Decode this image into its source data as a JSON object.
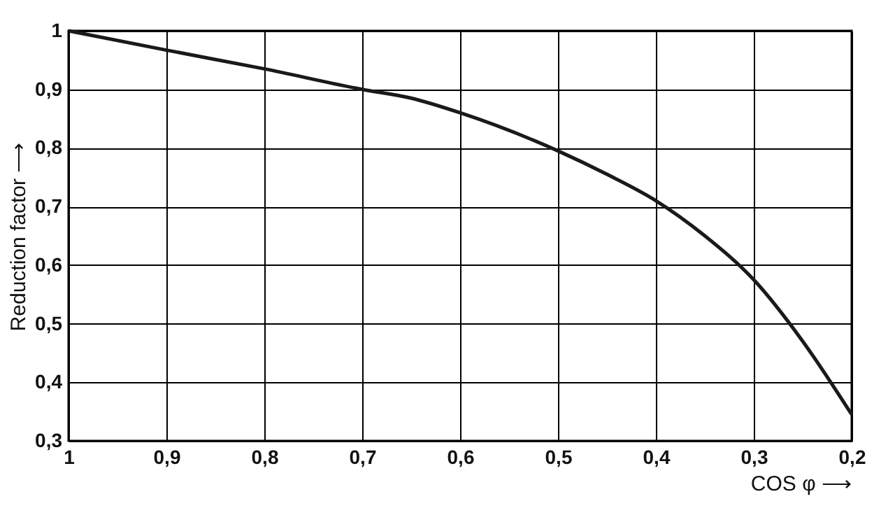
{
  "chart_data": {
    "type": "line",
    "xlabel": "COS φ ⟶",
    "ylabel": "Reduction factor ⟶",
    "x": [
      1,
      0.9,
      0.8,
      0.7,
      0.65,
      0.6,
      0.5,
      0.45,
      0.4,
      0.35,
      0.3,
      0.25,
      0.2
    ],
    "series": [
      {
        "color": "#1a1a1a",
        "values": [
          1,
          0.967,
          0.935,
          0.9,
          0.885,
          0.86,
          0.795,
          0.755,
          0.71,
          0.65,
          0.575,
          0.47,
          0.345
        ]
      }
    ],
    "xlim": [
      1,
      0.2
    ],
    "ylim": [
      0.3,
      1
    ],
    "xticks": [
      1,
      {
        "value": 0.9,
        "label": "0,9"
      },
      {
        "value": 0.8,
        "label": "0,8"
      },
      {
        "value": 0.7,
        "label": "0,7"
      },
      {
        "value": 0.6,
        "label": "0,6"
      },
      {
        "value": 0.5,
        "label": "0,5"
      },
      {
        "value": 0.4,
        "label": "0,4"
      },
      {
        "value": 0.3,
        "label": "0,3"
      },
      {
        "value": 0.2,
        "label": "0,2"
      }
    ],
    "yticks": [
      {
        "value": 0.3,
        "label": "0,3"
      },
      {
        "value": 0.4,
        "label": "0,4"
      },
      {
        "value": 0.5,
        "label": "0,5"
      },
      {
        "value": 0.6,
        "label": "0,6"
      },
      {
        "value": 0.7,
        "label": "0,7"
      },
      {
        "value": 0.8,
        "label": "0,8"
      },
      {
        "value": 0.9,
        "label": "0,9"
      },
      1
    ],
    "grid": true,
    "marker": "none",
    "line_style": "solid"
  }
}
